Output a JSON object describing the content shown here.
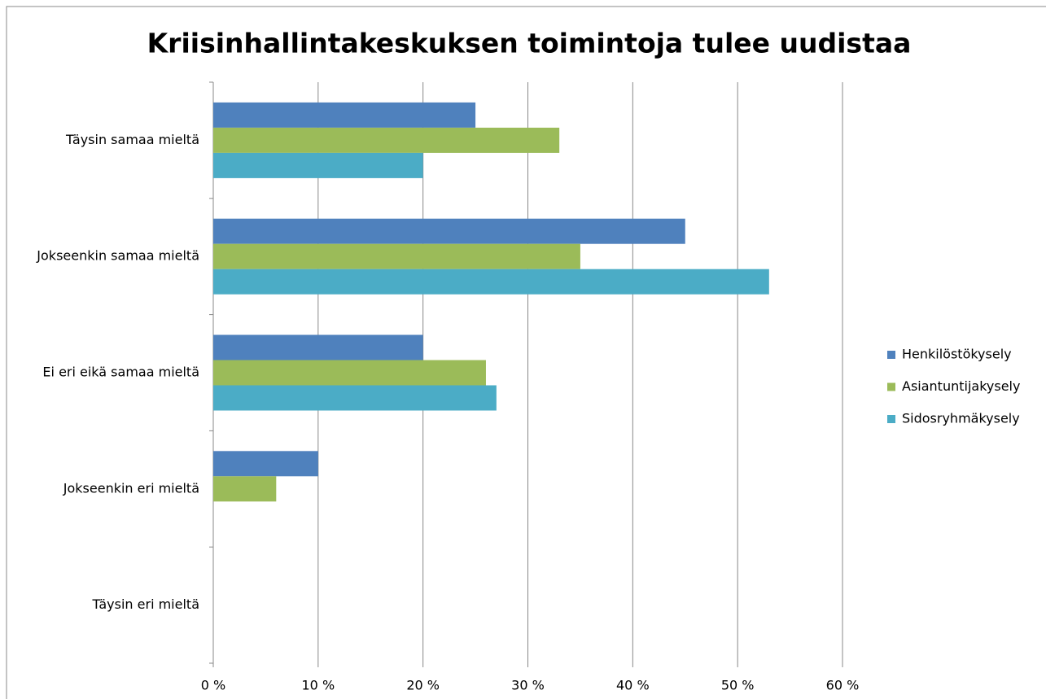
{
  "chart_data": {
    "type": "barh",
    "title": "Kriisinhallintakeskuksen toimintoja tulee uudistaa",
    "categories": [
      "Täysin samaa mieltä",
      "Jokseenkin samaa mieltä",
      "Ei eri eikä samaa mieltä",
      "Jokseenkin eri mieltä",
      "Täysin eri mieltä"
    ],
    "series": [
      {
        "name": "Henkilöstökysely",
        "color": "#4f81bd",
        "values": [
          25,
          45,
          20,
          10,
          0
        ]
      },
      {
        "name": "Asiantuntijakysely",
        "color": "#9bbb59",
        "values": [
          33,
          35,
          26,
          6,
          0
        ]
      },
      {
        "name": "Sidosryhmäkysely",
        "color": "#4bacc6",
        "values": [
          20,
          53,
          27,
          0,
          0
        ]
      }
    ],
    "xlim": [
      0,
      60
    ],
    "xticks": [
      {
        "value": 0,
        "label": "0 %"
      },
      {
        "value": 10,
        "label": "10 %"
      },
      {
        "value": 20,
        "label": "20 %"
      },
      {
        "value": 30,
        "label": "30 %"
      },
      {
        "value": 40,
        "label": "40 %"
      },
      {
        "value": 50,
        "label": "50 %"
      },
      {
        "value": 60,
        "label": "60 %"
      }
    ],
    "grid": true,
    "legend": "right"
  }
}
